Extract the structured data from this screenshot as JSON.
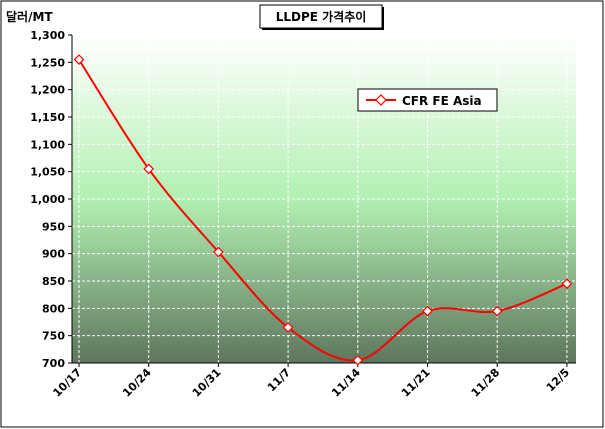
{
  "chart_data": {
    "type": "line",
    "title": "LLDPE 가격추이",
    "ylabel": "달러/MT",
    "xlabel": "",
    "categories": [
      "10/17",
      "10/24",
      "10/31",
      "11/7",
      "11/14",
      "11/21",
      "11/28",
      "12/5"
    ],
    "yticks": [
      "700",
      "750",
      "800",
      "850",
      "900",
      "950",
      "1,000",
      "1,050",
      "1,100",
      "1,150",
      "1,200",
      "1,250",
      "1,300"
    ],
    "ylim": [
      700,
      1300
    ],
    "grid": true,
    "legend_position": "top-right",
    "series": [
      {
        "name": "CFR FE Asia",
        "color": "#ff0000",
        "values": [
          1255,
          1055,
          903,
          765,
          705,
          795,
          795,
          845
        ]
      }
    ]
  }
}
